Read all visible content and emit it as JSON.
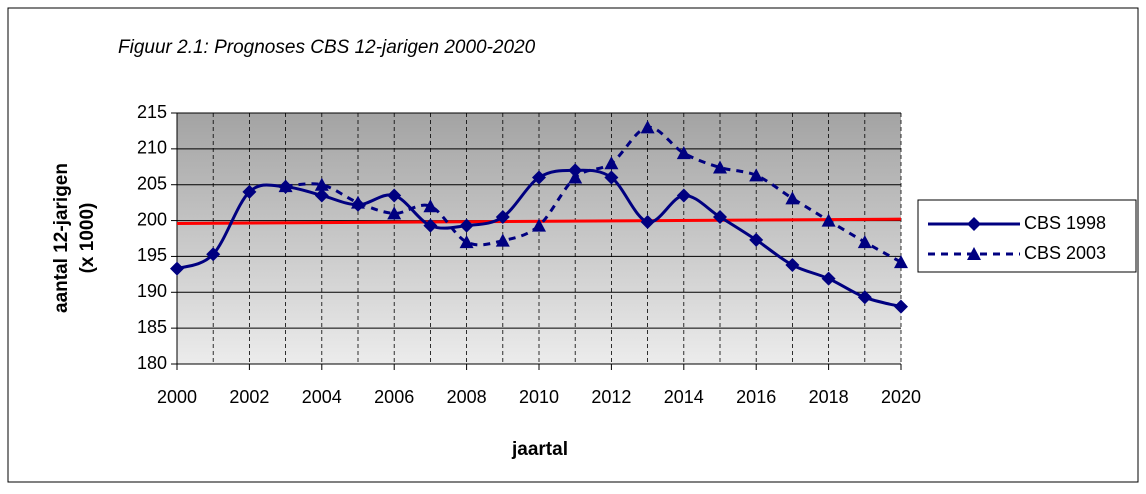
{
  "chart_data": {
    "type": "line",
    "title": "Figuur 2.1: Prognoses CBS 12-jarigen  2000-2020",
    "x_label": "jaartal",
    "y_label": [
      "aantal 12-jarigen",
      "(x 1000)"
    ],
    "x": [
      2000,
      2001,
      2002,
      2003,
      2004,
      2005,
      2006,
      2007,
      2008,
      2009,
      2010,
      2011,
      2012,
      2013,
      2014,
      2015,
      2016,
      2017,
      2018,
      2019,
      2020
    ],
    "series": [
      {
        "name": "CBS 1998",
        "color": "#000080",
        "marker": "diamond",
        "dashed": false,
        "values": [
          193.3,
          195.3,
          204,
          204.7,
          203.5,
          202.2,
          203.5,
          199.3,
          199.3,
          200.5,
          206,
          207,
          206,
          199.8,
          203.5,
          200.5,
          197.3,
          193.8,
          191.9,
          189.3,
          188
        ]
      },
      {
        "name": "CBS 2003",
        "color": "#000080",
        "marker": "triangle",
        "dashed": true,
        "values": [
          null,
          null,
          null,
          204.8,
          205,
          202.5,
          201,
          202,
          197,
          197.2,
          199.3,
          206,
          208,
          213,
          209.4,
          207.4,
          206.3,
          203.1,
          200,
          197,
          194.2
        ]
      }
    ],
    "reference_line": {
      "x": [
        2000,
        2020
      ],
      "values": [
        199.6,
        200.2
      ],
      "color": "#ff0000"
    },
    "xlim": [
      2000,
      2020
    ],
    "xticks": [
      2000,
      2002,
      2004,
      2006,
      2008,
      2010,
      2012,
      2014,
      2016,
      2018,
      2020
    ],
    "ylim": [
      180,
      215
    ],
    "yticks": [
      180,
      185,
      190,
      195,
      200,
      205,
      210,
      215
    ],
    "grid": true,
    "smooth": true,
    "legend": "right"
  }
}
